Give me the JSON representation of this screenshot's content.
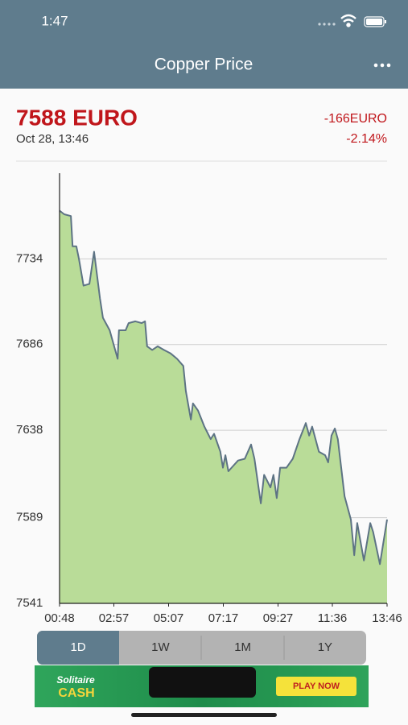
{
  "status_bar": {
    "time": "1:47"
  },
  "header": {
    "title": "Copper Price"
  },
  "quote": {
    "price": "7588 EURO",
    "date": "Oct 28, 13:46",
    "change": "-166EURO",
    "change_percent": "-2.14%"
  },
  "chart_data": {
    "type": "area",
    "color": "#5d7384",
    "fill": "#b9dc98",
    "grid": true,
    "x": [
      "00:48",
      "00:59",
      "01:15",
      "01:19",
      "01:28",
      "01:34",
      "01:45",
      "01:59",
      "02:10",
      "02:24",
      "02:31",
      "02:47",
      "03:00",
      "03:06",
      "03:09",
      "03:25",
      "03:32",
      "03:48",
      "04:03",
      "04:11",
      "04:16",
      "04:28",
      "04:41",
      "04:56",
      "05:12",
      "05:27",
      "05:42",
      "05:48",
      "06:00",
      "06:05",
      "06:17",
      "06:32",
      "06:47",
      "06:55",
      "07:10",
      "07:16",
      "07:22",
      "07:29",
      "07:52",
      "08:08",
      "08:23",
      "08:31",
      "08:46",
      "08:54",
      "09:09",
      "09:16",
      "09:24",
      "09:32",
      "09:47",
      "10:02",
      "10:18",
      "10:33",
      "10:41",
      "10:48",
      "11:04",
      "11:19",
      "11:26",
      "11:34",
      "11:42",
      "11:49",
      "12:05",
      "12:20",
      "12:28",
      "12:35",
      "12:51",
      "13:06",
      "13:13",
      "13:29",
      "13:46"
    ],
    "values": [
      7761,
      7759,
      7758,
      7741,
      7741,
      7734,
      7719,
      7720,
      7738,
      7712,
      7701,
      7694,
      7683,
      7678,
      7694,
      7694,
      7698,
      7699,
      7698,
      7699,
      7685,
      7683,
      7685,
      7683,
      7681,
      7678,
      7674,
      7660,
      7644,
      7653,
      7649,
      7640,
      7633,
      7636,
      7626,
      7617,
      7624,
      7615,
      7621,
      7622,
      7630,
      7622,
      7597,
      7613,
      7606,
      7613,
      7600,
      7617,
      7617,
      7622,
      7633,
      7642,
      7635,
      7640,
      7626,
      7624,
      7620,
      7635,
      7639,
      7633,
      7601,
      7588,
      7568,
      7586,
      7565,
      7586,
      7581,
      7563,
      7588
    ],
    "xlim": [
      "00:48",
      "13:46"
    ],
    "xticks": [
      "00:48",
      "02:57",
      "05:07",
      "07:17",
      "09:27",
      "11:36",
      "13:46"
    ],
    "ylim": [
      7541,
      7782
    ],
    "yticks": [
      7541,
      7589,
      7638,
      7686,
      7734
    ]
  },
  "tabs": [
    "1D",
    "1W",
    "1M",
    "1Y"
  ],
  "ad": {
    "brand": "Solitaire",
    "brand_sub": "CASH",
    "button": "PLAY NOW"
  }
}
